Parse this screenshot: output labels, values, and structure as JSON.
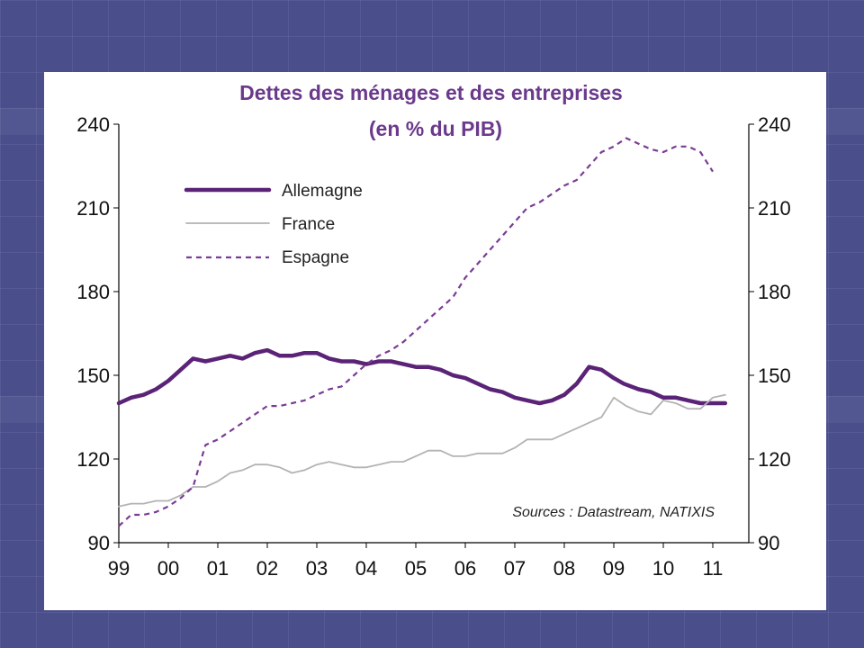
{
  "chart_data": {
    "type": "line",
    "title": "Dettes des ménages et des entreprises",
    "subtitle": "(en % du PIB)",
    "ylim": [
      90,
      240
    ],
    "y_ticks": [
      90,
      120,
      150,
      180,
      210,
      240
    ],
    "x_tick_labels": [
      "99",
      "00",
      "01",
      "02",
      "03",
      "04",
      "05",
      "06",
      "07",
      "08",
      "09",
      "10",
      "11"
    ],
    "x_range": [
      1999,
      2011.4
    ],
    "legend_position": "top-left",
    "source": "Sources : Datastream, NATIXIS",
    "grid": false,
    "series": [
      {
        "name": "Allemagne",
        "color": "#5b2377",
        "style": "solid-thick",
        "x": [
          1999.0,
          1999.25,
          1999.5,
          1999.75,
          2000.0,
          2000.25,
          2000.5,
          2000.75,
          2001.0,
          2001.25,
          2001.5,
          2001.75,
          2002.0,
          2002.25,
          2002.5,
          2002.75,
          2003.0,
          2003.25,
          2003.5,
          2003.75,
          2004.0,
          2004.25,
          2004.5,
          2004.75,
          2005.0,
          2005.25,
          2005.5,
          2005.75,
          2006.0,
          2006.25,
          2006.5,
          2006.75,
          2007.0,
          2007.25,
          2007.5,
          2007.75,
          2008.0,
          2008.25,
          2008.5,
          2008.75,
          2009.0,
          2009.2,
          2009.5,
          2009.75,
          2010.0,
          2010.25,
          2010.5,
          2010.75,
          2011.0,
          2011.25
        ],
        "y": [
          140,
          142,
          143,
          145,
          148,
          152,
          156,
          155,
          156,
          157,
          156,
          158,
          159,
          157,
          157,
          158,
          158,
          156,
          155,
          155,
          154,
          155,
          155,
          154,
          153,
          153,
          152,
          150,
          149,
          147,
          145,
          144,
          142,
          141,
          140,
          141,
          143,
          147,
          153,
          152,
          149,
          147,
          145,
          144,
          142,
          142,
          141,
          140,
          140,
          140
        ]
      },
      {
        "name": "France",
        "color": "#b3b3b3",
        "style": "solid-thin",
        "x": [
          1999.0,
          1999.25,
          1999.5,
          1999.75,
          2000.0,
          2000.25,
          2000.5,
          2000.75,
          2001.0,
          2001.25,
          2001.5,
          2001.75,
          2002.0,
          2002.25,
          2002.5,
          2002.75,
          2003.0,
          2003.25,
          2003.5,
          2003.75,
          2004.0,
          2004.25,
          2004.5,
          2004.75,
          2005.0,
          2005.25,
          2005.5,
          2005.75,
          2006.0,
          2006.25,
          2006.5,
          2006.75,
          2007.0,
          2007.25,
          2007.5,
          2007.75,
          2008.0,
          2008.25,
          2008.5,
          2008.75,
          2009.0,
          2009.25,
          2009.5,
          2009.75,
          2010.0,
          2010.25,
          2010.5,
          2010.75,
          2011.0,
          2011.25
        ],
        "y": [
          103,
          104,
          104,
          105,
          105,
          107,
          110,
          110,
          112,
          115,
          116,
          118,
          118,
          117,
          115,
          116,
          118,
          119,
          118,
          117,
          117,
          118,
          119,
          119,
          121,
          123,
          123,
          121,
          121,
          122,
          122,
          122,
          124,
          127,
          127,
          127,
          129,
          131,
          133,
          135,
          142,
          139,
          137,
          136,
          141,
          140,
          138,
          138,
          142,
          143
        ]
      },
      {
        "name": "Espagne",
        "color": "#7a3c95",
        "style": "dashed",
        "x": [
          1999.0,
          1999.25,
          1999.5,
          1999.75,
          2000.0,
          2000.25,
          2000.5,
          2000.75,
          2001.0,
          2001.25,
          2001.5,
          2001.75,
          2002.0,
          2002.25,
          2002.5,
          2002.75,
          2003.0,
          2003.25,
          2003.5,
          2003.75,
          2004.0,
          2004.25,
          2004.5,
          2004.75,
          2005.0,
          2005.25,
          2005.5,
          2005.75,
          2006.0,
          2006.25,
          2006.5,
          2006.75,
          2007.0,
          2007.25,
          2007.5,
          2007.75,
          2008.0,
          2008.25,
          2008.5,
          2008.75,
          2009.0,
          2009.25,
          2009.5,
          2009.75,
          2010.0,
          2010.25,
          2010.5,
          2010.75,
          2011.0
        ],
        "y": [
          96,
          100,
          100,
          101,
          103,
          106,
          110,
          125,
          127,
          130,
          133,
          136,
          139,
          139,
          140,
          141,
          143,
          145,
          146,
          150,
          154,
          157,
          159,
          162,
          166,
          170,
          174,
          178,
          185,
          190,
          195,
          200,
          205,
          210,
          212,
          215,
          218,
          220,
          225,
          230,
          232,
          235,
          233,
          231,
          230,
          232,
          232,
          230,
          223
        ]
      }
    ]
  }
}
